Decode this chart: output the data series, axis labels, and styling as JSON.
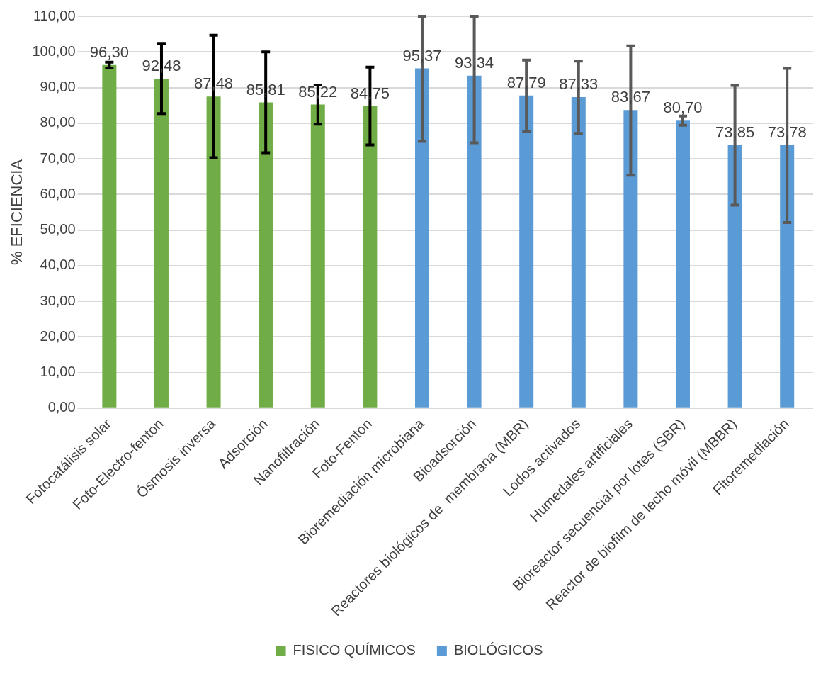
{
  "chart_data": {
    "type": "bar",
    "ylabel": "% EFICIENCIA",
    "categories": [
      "Fotocatálisis solar",
      "Foto-Electro-fenton",
      "Ósmosis inversa",
      "Adsorción",
      "Nanofiltración",
      "Foto-Fenton",
      "Bioremediación microbiana",
      "Bioadsorción",
      "Reactores biológicos de  membrana (MBR)",
      "Lodos activados",
      "Humedales artificiales",
      "Bioreactor secuencial por lotes (SBR)",
      "Reactor de biofilm de lecho móvil (MBBR)",
      "Fitoremediación"
    ],
    "series": [
      {
        "name": "FISICO QUÍMICOS",
        "color": "#70ad47",
        "values": [
          96.3,
          92.48,
          87.48,
          85.81,
          85.22,
          84.75,
          null,
          null,
          null,
          null,
          null,
          null,
          null,
          null
        ],
        "value_labels": [
          "96,30",
          "92,48",
          "87,48",
          "85,81",
          "85,22",
          "84,75",
          null,
          null,
          null,
          null,
          null,
          null,
          null,
          null
        ],
        "errors": [
          [
            95.5,
            97.1
          ],
          [
            82.7,
            102.4
          ],
          [
            70.3,
            104.7
          ],
          [
            71.7,
            100
          ],
          [
            79.7,
            90.7
          ],
          [
            73.9,
            95.7
          ],
          null,
          null,
          null,
          null,
          null,
          null,
          null,
          null
        ]
      },
      {
        "name": "BIOLÓGICOS",
        "color": "#5b9bd5",
        "values": [
          null,
          null,
          null,
          null,
          null,
          null,
          95.37,
          93.34,
          87.79,
          87.33,
          83.67,
          80.7,
          73.85,
          73.78
        ],
        "value_labels": [
          null,
          null,
          null,
          null,
          null,
          null,
          "95,37",
          "93,34",
          "87,79",
          "87,33",
          "83,67",
          "80,70",
          "73,85",
          "73,78"
        ],
        "errors": [
          null,
          null,
          null,
          null,
          null,
          null,
          [
            74.9,
            110
          ],
          [
            74.5,
            110
          ],
          [
            77.7,
            97.7
          ],
          [
            77.1,
            97.4
          ],
          [
            65.4,
            101.7
          ],
          [
            79.4,
            82
          ],
          [
            57,
            90.6
          ],
          [
            52.1,
            95.4
          ]
        ]
      }
    ],
    "ylim": [
      0,
      110
    ],
    "yticks": [
      {
        "value": 0,
        "label": "0,00"
      },
      {
        "value": 10,
        "label": "10,00"
      },
      {
        "value": 20,
        "label": "20,00"
      },
      {
        "value": 30,
        "label": "30,00"
      },
      {
        "value": 40,
        "label": "40,00"
      },
      {
        "value": 50,
        "label": "50,00"
      },
      {
        "value": 60,
        "label": "60,00"
      },
      {
        "value": 70,
        "label": "70,00"
      },
      {
        "value": 80,
        "label": "80,00"
      },
      {
        "value": 90,
        "label": "90,00"
      },
      {
        "value": 100,
        "label": "100,00"
      },
      {
        "value": 110,
        "label": "110,00"
      }
    ],
    "grid": "y",
    "legend": "bottom"
  }
}
